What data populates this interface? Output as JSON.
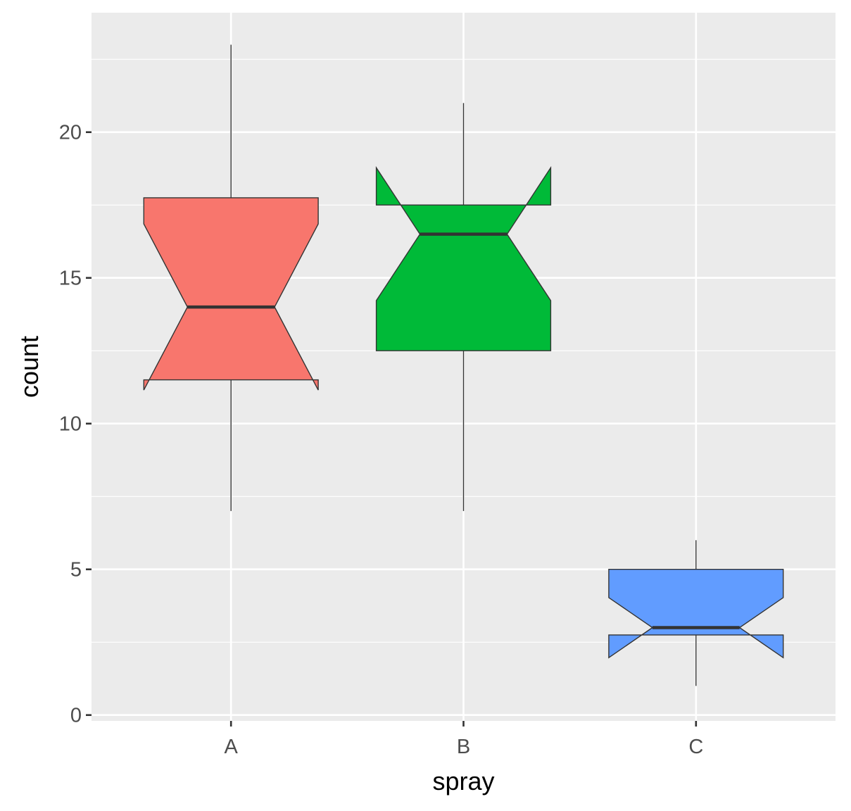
{
  "chart_data": {
    "type": "boxplot",
    "notched": true,
    "xlabel": "spray",
    "ylabel": "count",
    "ylim": [
      -0.2,
      24.1
    ],
    "yticks": [
      0,
      5,
      10,
      15,
      20
    ],
    "grid": true,
    "background": "#ebebeb",
    "categories": [
      "A",
      "B",
      "C"
    ],
    "boxes": [
      {
        "category": "A",
        "fill": "#f8766d",
        "whisker_low": 7,
        "q1": 11.5,
        "median": 14,
        "q3": 17.75,
        "whisker_high": 23,
        "notch_low": 11.15,
        "notch_high": 16.85
      },
      {
        "category": "B",
        "fill": "#00ba38",
        "whisker_low": 7,
        "q1": 12.5,
        "median": 16.5,
        "q3": 17.5,
        "whisker_high": 21,
        "notch_low": 14.22,
        "notch_high": 18.78
      },
      {
        "category": "C",
        "fill": "#619cff",
        "whisker_low": 1,
        "q1": 2.75,
        "median": 3,
        "q3": 5,
        "whisker_high": 6,
        "notch_low": 1.97,
        "notch_high": 4.03
      }
    ]
  }
}
